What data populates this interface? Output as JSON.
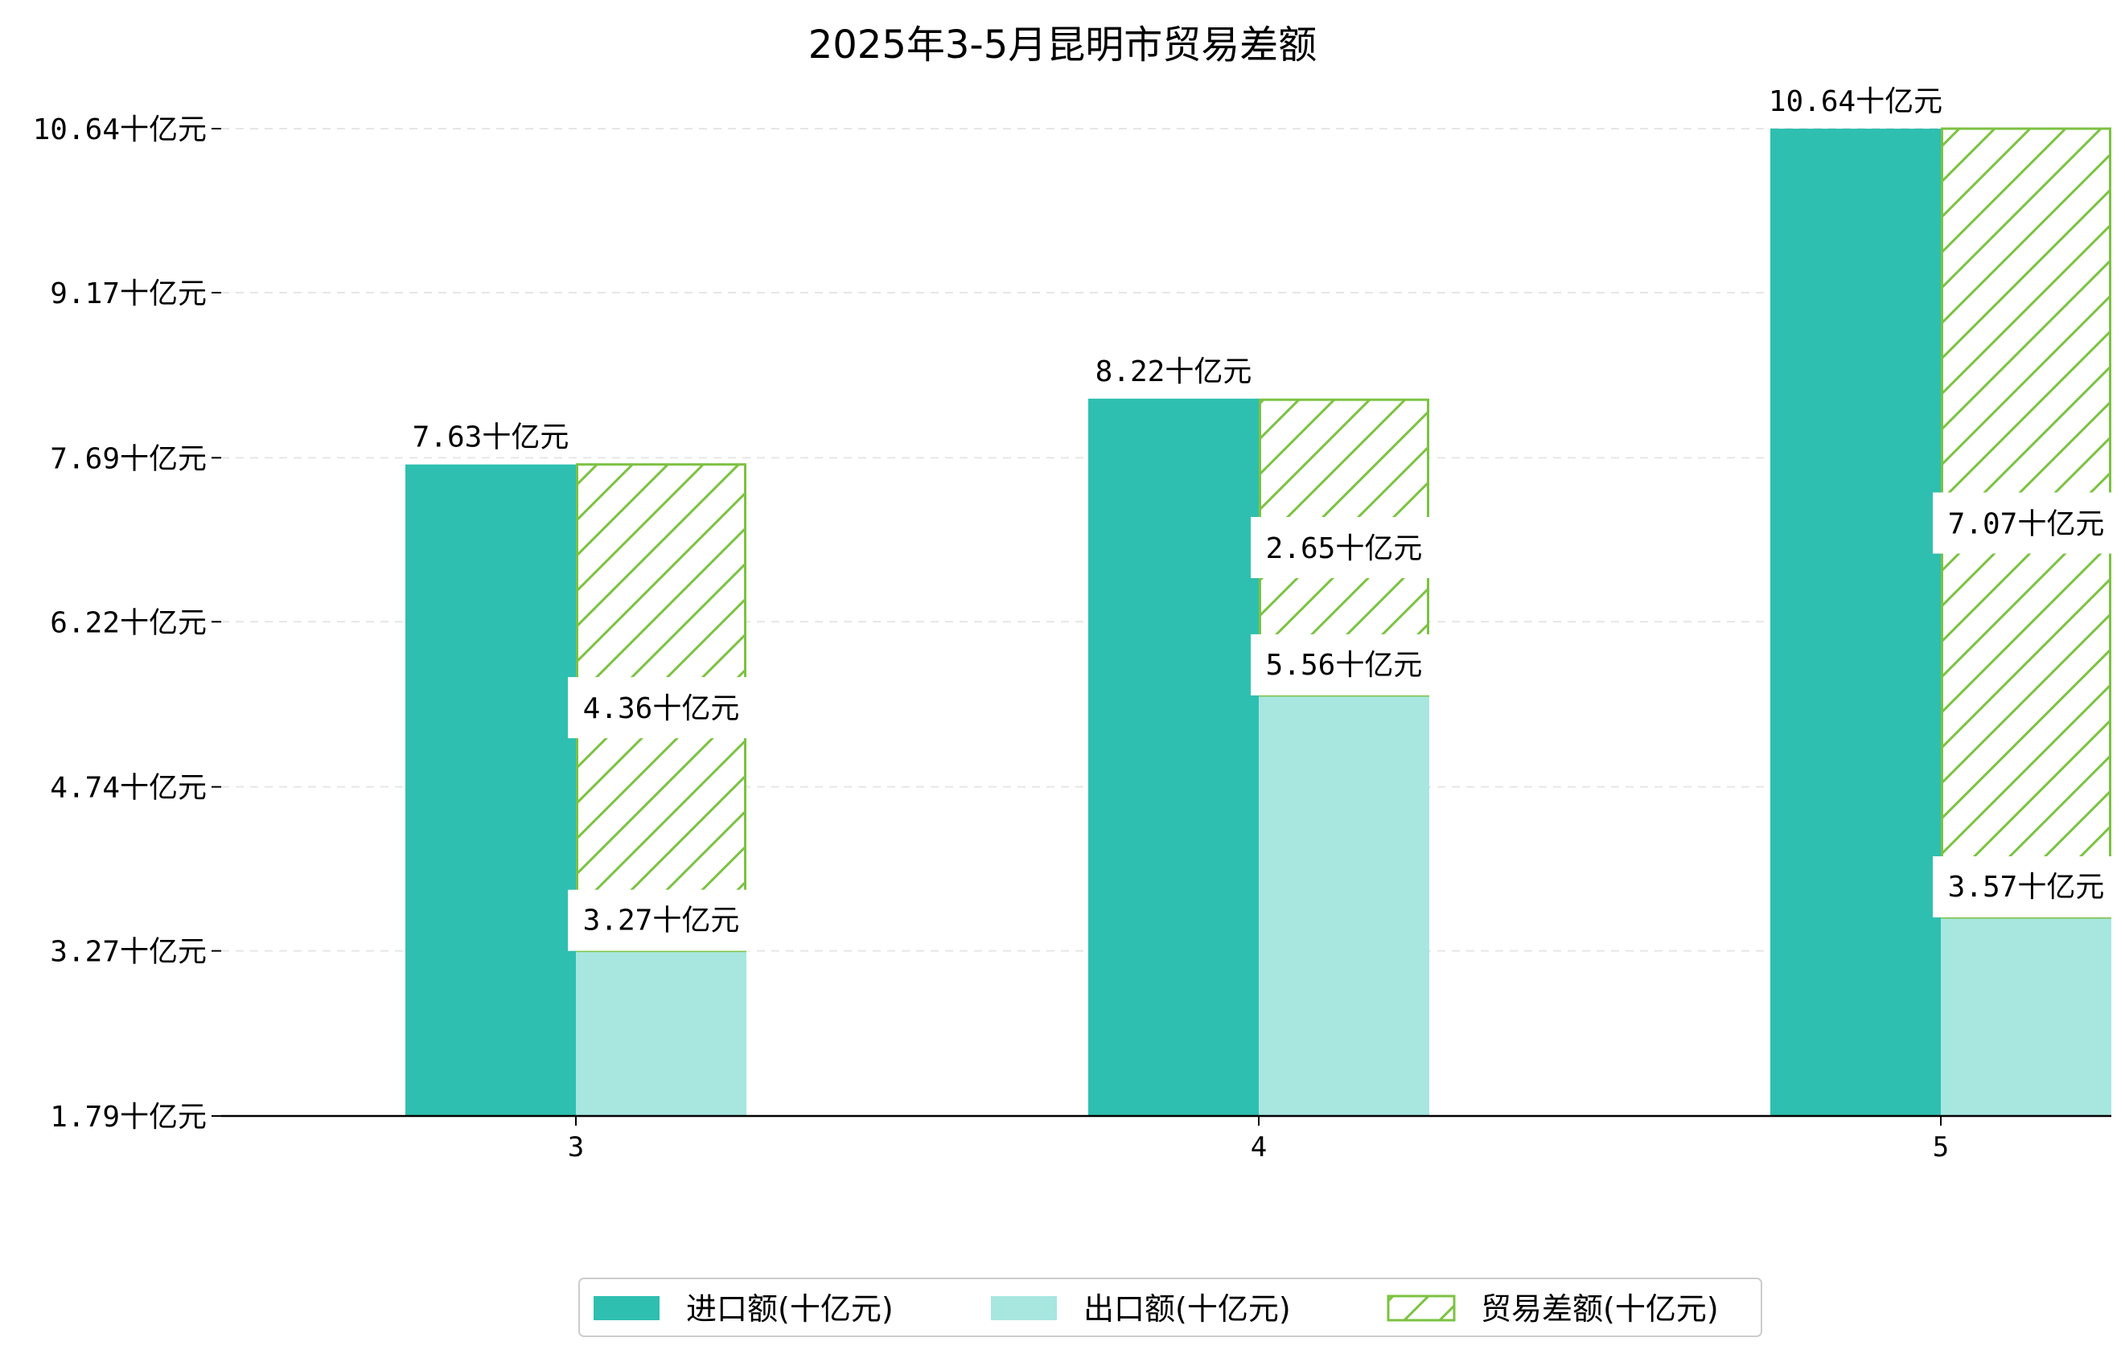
{
  "chart_data": {
    "type": "bar",
    "title": "2025年3-5月昆明市贸易差额",
    "categories": [
      "3",
      "4",
      "5"
    ],
    "unit_suffix": "十亿元",
    "ylim": [
      1.79,
      10.64
    ],
    "yticks": [
      "1.79十亿元",
      "3.27十亿元",
      "4.74十亿元",
      "6.22十亿元",
      "7.69十亿元",
      "9.17十亿元",
      "10.64十亿元"
    ],
    "ytick_values": [
      1.79,
      3.27,
      4.74,
      6.22,
      7.69,
      9.17,
      10.64
    ],
    "series": [
      {
        "name": "进口额(十亿元)",
        "values": [
          7.63,
          8.22,
          10.64
        ],
        "labels": [
          "7.63十亿元",
          "8.22十亿元",
          "10.64十亿元"
        ],
        "color": "#2ebfb0"
      },
      {
        "name": "出口额(十亿元)",
        "values": [
          3.27,
          5.56,
          3.57
        ],
        "labels": [
          "3.27十亿元",
          "5.56十亿元",
          "3.57十亿元"
        ],
        "color": "#a8e6e0"
      },
      {
        "name": "贸易差额(十亿元)",
        "values": [
          4.36,
          2.65,
          7.07
        ],
        "labels": [
          "4.36十亿元",
          "2.65十亿元",
          "7.07十亿元"
        ],
        "color": "#7cc242",
        "hatch": true,
        "stacked_on": "出口额(十亿元)"
      }
    ],
    "grid": "horizontal dashed",
    "legend_position": "bottom-center"
  }
}
